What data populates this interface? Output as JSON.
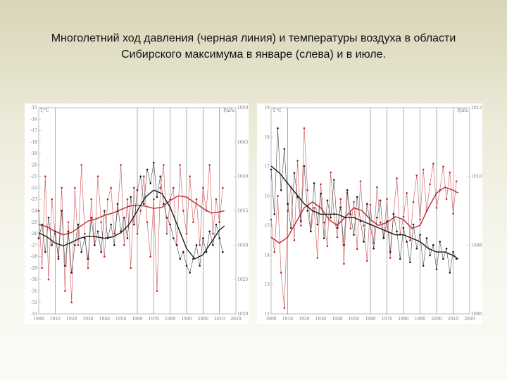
{
  "title": {
    "line1": "Многолетний ход давления (черная линия) и температуры воздуха в области",
    "line2": "Сибирского максимума в январе (слева) и в июле."
  },
  "colors": {
    "pressure": "#1a1a1a",
    "temperature": "#c0282d",
    "grid": "#888888",
    "axis": "#aaaaaa"
  },
  "chart_data": [
    {
      "type": "line",
      "name": "january",
      "x_ticks": [
        1900,
        1910,
        1920,
        1930,
        1940,
        1950,
        1960,
        1970,
        1980,
        1990,
        2000,
        2010,
        2020
      ],
      "xlim": [
        1900,
        2020
      ],
      "y_left_label": "T,°C",
      "y_left_ticks": [
        -15,
        -16,
        -17,
        -18,
        -19,
        -20,
        -21,
        -22,
        -23,
        -24,
        -25,
        -26,
        -27,
        -28,
        -29,
        -30,
        -31,
        -32,
        -33
      ],
      "y_left_lim": [
        -33,
        -15
      ],
      "y_right_label": "P,hPa",
      "y_right_ticks": [
        1050,
        1045,
        1040,
        1035,
        1030,
        1025,
        1020
      ],
      "y_right_lim": [
        1020,
        1050
      ],
      "vlines": [
        1910,
        1960,
        1970,
        1980,
        1990,
        2000,
        2010
      ],
      "series": [
        {
          "name": "temperature",
          "axis": "left",
          "role": "raw",
          "x": [
            1900,
            1902,
            1904,
            1906,
            1908,
            1910,
            1912,
            1914,
            1916,
            1918,
            1920,
            1922,
            1924,
            1926,
            1928,
            1930,
            1932,
            1934,
            1936,
            1938,
            1940,
            1942,
            1944,
            1946,
            1948,
            1950,
            1952,
            1954,
            1956,
            1958,
            1960,
            1962,
            1964,
            1966,
            1968,
            1970,
            1972,
            1974,
            1976,
            1978,
            1980,
            1982,
            1984,
            1986,
            1988,
            1990,
            1992,
            1994,
            1996,
            1998,
            2000,
            2002,
            2004,
            2006,
            2008,
            2010,
            2012
          ],
          "values": [
            -24,
            -29,
            -21,
            -30,
            -23,
            -26,
            -28,
            -22,
            -31,
            -25,
            -32,
            -22,
            -27,
            -20,
            -26,
            -29,
            -23,
            -27,
            -21,
            -25,
            -28,
            -23,
            -22,
            -26,
            -24,
            -20,
            -27,
            -23,
            -29,
            -22,
            -26,
            -24,
            -21,
            -25,
            -28,
            -23,
            -31,
            -22,
            -20,
            -26,
            -23,
            -22,
            -27,
            -20,
            -24,
            -26,
            -21,
            -25,
            -23,
            -27,
            -22,
            -24,
            -20,
            -26,
            -23,
            -25,
            -22
          ]
        },
        {
          "name": "temperature",
          "axis": "left",
          "role": "smoothed",
          "x": [
            1900,
            1905,
            1910,
            1915,
            1920,
            1925,
            1930,
            1935,
            1940,
            1945,
            1950,
            1955,
            1960,
            1965,
            1970,
            1975,
            1980,
            1985,
            1990,
            1995,
            2000,
            2005,
            2010,
            2013
          ],
          "values": [
            -25.2,
            -25.4,
            -25.8,
            -26.1,
            -25.9,
            -25.4,
            -24.9,
            -24.7,
            -24.4,
            -24.2,
            -23.9,
            -23.6,
            -23.5,
            -23.6,
            -23.8,
            -23.7,
            -23.1,
            -22.7,
            -22.8,
            -23.3,
            -23.8,
            -24.2,
            -24.1,
            -24.0
          ]
        },
        {
          "name": "pressure",
          "axis": "right",
          "role": "raw",
          "x": [
            1900,
            1902,
            1904,
            1906,
            1908,
            1910,
            1912,
            1914,
            1916,
            1918,
            1920,
            1922,
            1924,
            1926,
            1928,
            1930,
            1932,
            1934,
            1936,
            1938,
            1940,
            1942,
            1944,
            1946,
            1948,
            1950,
            1952,
            1954,
            1956,
            1958,
            1960,
            1962,
            1964,
            1966,
            1968,
            1970,
            1972,
            1974,
            1976,
            1978,
            1980,
            1982,
            1984,
            1986,
            1988,
            1990,
            1992,
            1994,
            1996,
            1998,
            2000,
            2002,
            2004,
            2006,
            2008,
            2010,
            2012
          ],
          "values": [
            1031,
            1033,
            1029,
            1034,
            1030,
            1032,
            1028,
            1035,
            1027,
            1032,
            1026,
            1030,
            1033,
            1029,
            1031,
            1028,
            1034,
            1030,
            1032,
            1029,
            1035,
            1031,
            1033,
            1030,
            1036,
            1032,
            1034,
            1031,
            1037,
            1033,
            1038,
            1040,
            1036,
            1041,
            1039,
            1042,
            1037,
            1040,
            1036,
            1034,
            1033,
            1031,
            1030,
            1028,
            1029,
            1027,
            1026,
            1028,
            1030,
            1027,
            1031,
            1029,
            1032,
            1030,
            1033,
            1031,
            1029
          ]
        },
        {
          "name": "pressure",
          "axis": "right",
          "role": "smoothed",
          "x": [
            1900,
            1905,
            1910,
            1915,
            1920,
            1925,
            1930,
            1935,
            1940,
            1945,
            1950,
            1955,
            1960,
            1965,
            1970,
            1975,
            1980,
            1985,
            1990,
            1995,
            2000,
            2005,
            2010,
            2013
          ],
          "values": [
            1031.8,
            1031.2,
            1030.3,
            1029.9,
            1030.4,
            1031.0,
            1031.3,
            1031.2,
            1031.0,
            1031.2,
            1031.8,
            1033.0,
            1035.0,
            1037.0,
            1038.0,
            1037.5,
            1035.5,
            1032.5,
            1029.5,
            1028.0,
            1028.6,
            1030.4,
            1032.2,
            1032.8
          ]
        }
      ]
    },
    {
      "type": "line",
      "name": "july",
      "x_ticks": [
        1900,
        1910,
        1920,
        1930,
        1940,
        1950,
        1960,
        1970,
        1980,
        1990,
        2000,
        2010,
        2020
      ],
      "xlim": [
        1900,
        2020
      ],
      "y_left_label": "T,°C",
      "y_left_ticks": [
        19,
        18,
        17,
        16,
        15,
        14,
        13,
        12
      ],
      "y_left_lim": [
        12,
        19
      ],
      "y_right_label": "P,hPa",
      "y_right_ticks": [
        1012,
        1010,
        1008,
        1006
      ],
      "y_right_lim": [
        1006,
        1012
      ],
      "vlines": [
        1910,
        1960,
        1970,
        1980,
        1990,
        2000,
        2010
      ],
      "series": [
        {
          "name": "temperature",
          "axis": "left",
          "role": "raw",
          "x": [
            1900,
            1902,
            1904,
            1906,
            1908,
            1910,
            1912,
            1914,
            1916,
            1918,
            1920,
            1922,
            1924,
            1926,
            1928,
            1930,
            1932,
            1934,
            1936,
            1938,
            1940,
            1942,
            1944,
            1946,
            1948,
            1950,
            1952,
            1954,
            1956,
            1958,
            1960,
            1962,
            1964,
            1966,
            1968,
            1970,
            1972,
            1974,
            1976,
            1978,
            1980,
            1982,
            1984,
            1986,
            1988,
            1990,
            1992,
            1994,
            1996,
            1998,
            2000,
            2002,
            2004,
            2006,
            2008,
            2010,
            2012
          ],
          "values": [
            15.2,
            14.1,
            16.0,
            13.4,
            12.2,
            15.5,
            16.3,
            14.5,
            17.2,
            15.0,
            18.3,
            16.2,
            14.8,
            15.6,
            13.9,
            16.4,
            15.1,
            14.3,
            16.8,
            15.4,
            14.6,
            15.9,
            13.7,
            16.1,
            14.9,
            15.8,
            14.2,
            16.5,
            15.0,
            13.8,
            15.7,
            14.4,
            16.3,
            15.1,
            14.6,
            15.9,
            13.9,
            15.4,
            16.6,
            14.7,
            15.3,
            16.1,
            14.5,
            15.8,
            16.7,
            15.2,
            16.9,
            15.5,
            16.4,
            17.1,
            15.6,
            16.2,
            17.0,
            15.9,
            16.8,
            15.4,
            16.5
          ]
        },
        {
          "name": "temperature",
          "axis": "left",
          "role": "smoothed",
          "x": [
            1900,
            1905,
            1910,
            1915,
            1920,
            1925,
            1930,
            1935,
            1940,
            1945,
            1950,
            1955,
            1960,
            1965,
            1970,
            1975,
            1980,
            1985,
            1990,
            1995,
            2000,
            2005,
            2010,
            2013
          ],
          "values": [
            14.6,
            14.4,
            14.6,
            15.1,
            15.6,
            15.8,
            15.6,
            15.2,
            15.0,
            15.3,
            15.6,
            15.5,
            15.2,
            15.0,
            15.1,
            15.3,
            15.2,
            14.9,
            15.0,
            15.6,
            16.1,
            16.3,
            16.2,
            16.1
          ]
        },
        {
          "name": "pressure",
          "axis": "right",
          "role": "raw",
          "x": [
            1900,
            1902,
            1904,
            1906,
            1908,
            1910,
            1912,
            1914,
            1916,
            1918,
            1920,
            1922,
            1924,
            1926,
            1928,
            1930,
            1932,
            1934,
            1936,
            1938,
            1940,
            1942,
            1944,
            1946,
            1948,
            1950,
            1952,
            1954,
            1956,
            1958,
            1960,
            1962,
            1964,
            1966,
            1968,
            1970,
            1972,
            1974,
            1976,
            1978,
            1980,
            1982,
            1984,
            1986,
            1988,
            1990,
            1992,
            1994,
            1996,
            1998,
            2000,
            2002,
            2004,
            2006,
            2008,
            2010,
            2012
          ],
          "values": [
            1010.2,
            1008.9,
            1011.4,
            1009.6,
            1010.8,
            1009.2,
            1008.5,
            1010.1,
            1009.4,
            1008.7,
            1010.3,
            1009.0,
            1008.4,
            1009.8,
            1008.6,
            1009.5,
            1008.2,
            1009.3,
            1008.8,
            1009.9,
            1008.5,
            1009.1,
            1008.0,
            1009.6,
            1008.9,
            1008.3,
            1009.4,
            1008.7,
            1008.1,
            1009.2,
            1008.6,
            1007.9,
            1008.8,
            1009.3,
            1008.2,
            1008.7,
            1007.8,
            1008.9,
            1008.4,
            1007.6,
            1008.5,
            1008.1,
            1007.5,
            1008.6,
            1007.9,
            1008.3,
            1007.4,
            1008.2,
            1007.7,
            1008.0,
            1007.3,
            1008.1,
            1007.6,
            1007.9,
            1007.2,
            1007.8,
            1007.6
          ]
        },
        {
          "name": "pressure",
          "axis": "right",
          "role": "smoothed",
          "x": [
            1900,
            1905,
            1910,
            1915,
            1920,
            1925,
            1930,
            1935,
            1940,
            1945,
            1950,
            1955,
            1960,
            1965,
            1970,
            1975,
            1980,
            1985,
            1990,
            1995,
            2000,
            2005,
            2010,
            2013
          ],
          "values": [
            1010.3,
            1010.1,
            1009.8,
            1009.5,
            1009.2,
            1009.0,
            1008.9,
            1008.9,
            1008.9,
            1008.8,
            1008.8,
            1008.7,
            1008.6,
            1008.5,
            1008.4,
            1008.3,
            1008.3,
            1008.2,
            1008.1,
            1007.9,
            1007.8,
            1007.8,
            1007.7,
            1007.6
          ]
        }
      ]
    }
  ]
}
